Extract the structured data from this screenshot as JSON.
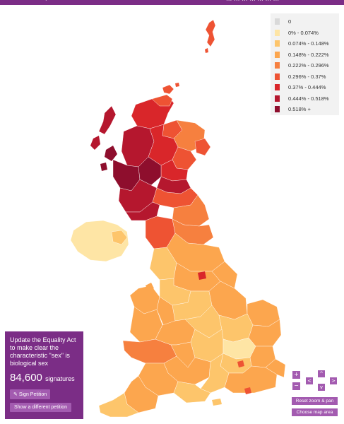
{
  "header": {
    "left_fragment": "' / ' '",
    "right_fragment": "... ... ... ... ... ... ..."
  },
  "legend": {
    "items": [
      {
        "label": "0",
        "color": "#d9d9d9"
      },
      {
        "label": "0% - 0.074%",
        "color": "#fee5a5"
      },
      {
        "label": "0.074% - 0.148%",
        "color": "#fdc56b"
      },
      {
        "label": "0.148% - 0.222%",
        "color": "#fca64e"
      },
      {
        "label": "0.222% - 0.296%",
        "color": "#f6803f"
      },
      {
        "label": "0.296% - 0.37%",
        "color": "#ee5333"
      },
      {
        "label": "0.37% - 0.444%",
        "color": "#d9262a"
      },
      {
        "label": "0.444% - 0.518%",
        "color": "#b5172e"
      },
      {
        "label": "0.518% +",
        "color": "#8e0e2d"
      }
    ]
  },
  "petition": {
    "title": "Update the Equality Act to make clear the characteristic \"sex\" is biological sex",
    "count": "84,600",
    "count_suffix": "signatures",
    "sign_label": "Sign Petition",
    "different_label": "Show a different petition"
  },
  "controls": {
    "zoom_in": "+",
    "zoom_out": "−",
    "pan_up": "^",
    "pan_down": "v",
    "pan_left": "<",
    "pan_right": ">",
    "reset_label": "Reset zoom & pan",
    "choose_label": "Choose map area"
  },
  "colors": {
    "brand": "#7b2d86",
    "button": "#a35bb0"
  }
}
